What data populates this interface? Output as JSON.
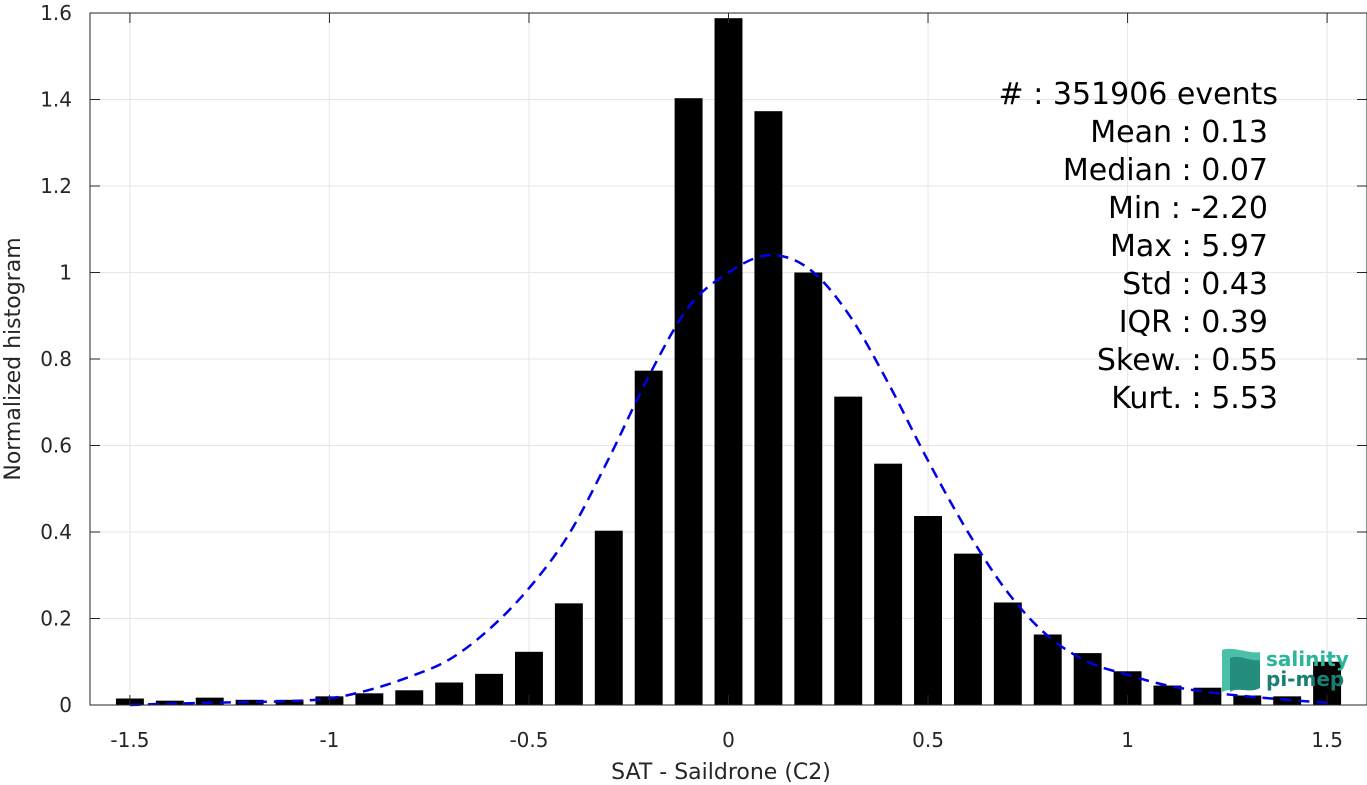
{
  "chart_data": {
    "type": "bar",
    "xlabel": "SAT - Saildrone (C2)",
    "ylabel": "Normalized histogram",
    "xlim": [
      -1.6,
      1.6
    ],
    "ylim": [
      0,
      1.6
    ],
    "grid": true,
    "x_ticks": [
      -1.5,
      -1,
      -0.5,
      0,
      0.5,
      1,
      1.5
    ],
    "x_tick_labels": [
      "-1.5",
      "-1",
      "-0.5",
      "0",
      "0.5",
      "1",
      "1.5"
    ],
    "y_ticks": [
      0,
      0.2,
      0.4,
      0.6,
      0.8,
      1,
      1.2,
      1.4,
      1.6
    ],
    "y_tick_labels": [
      "0",
      "0.2",
      "0.4",
      "0.6",
      "0.8",
      "1",
      "1.2",
      "1.4",
      "1.6"
    ],
    "bin_width": 0.1,
    "bars": {
      "x": [
        -1.5,
        -1.4,
        -1.3,
        -1.2,
        -1.1,
        -1.0,
        -0.9,
        -0.8,
        -0.7,
        -0.6,
        -0.5,
        -0.4,
        -0.3,
        -0.2,
        -0.1,
        0.0,
        0.1,
        0.2,
        0.3,
        0.4,
        0.5,
        0.6,
        0.7,
        0.8,
        0.9,
        1.0,
        1.1,
        1.2,
        1.3,
        1.4,
        1.5
      ],
      "values": [
        0.015,
        0.01,
        0.017,
        0.012,
        0.012,
        0.02,
        0.027,
        0.034,
        0.052,
        0.072,
        0.123,
        0.235,
        0.403,
        0.773,
        1.403,
        1.588,
        1.373,
        1.0,
        0.713,
        0.558,
        0.437,
        0.35,
        0.237,
        0.163,
        0.12,
        0.078,
        0.045,
        0.04,
        0.022,
        0.02,
        0.1
      ],
      "color": "#000000"
    },
    "fit_curve": {
      "style": "dashed",
      "color": "#0000e6",
      "x": [
        -1.5,
        -1.4,
        -1.3,
        -1.2,
        -1.1,
        -1.0,
        -0.9,
        -0.8,
        -0.7,
        -0.6,
        -0.5,
        -0.4,
        -0.3,
        -0.2,
        -0.1,
        0.0,
        0.1,
        0.2,
        0.3,
        0.4,
        0.5,
        0.6,
        0.7,
        0.8,
        0.9,
        1.0,
        1.1,
        1.2,
        1.3,
        1.4,
        1.5
      ],
      "values": [
        0.0,
        0.003,
        0.005,
        0.007,
        0.009,
        0.015,
        0.035,
        0.065,
        0.105,
        0.175,
        0.27,
        0.395,
        0.57,
        0.76,
        0.92,
        1.0,
        1.04,
        1.01,
        0.905,
        0.745,
        0.565,
        0.4,
        0.26,
        0.16,
        0.1,
        0.07,
        0.045,
        0.03,
        0.02,
        0.012,
        0.005
      ]
    },
    "stats": [
      "#  : 351906 events",
      "Mean : 0.13",
      "Median : 0.07",
      "Min : -2.20",
      "Max : 5.97",
      "Std : 0.43",
      "IQR : 0.39",
      "Skew. : 0.55",
      "Kurt. : 5.53"
    ]
  },
  "logo": {
    "line1": "salinity",
    "line2": "pi-mep",
    "color1": "#2bb59a",
    "color2": "#1a7f73"
  }
}
